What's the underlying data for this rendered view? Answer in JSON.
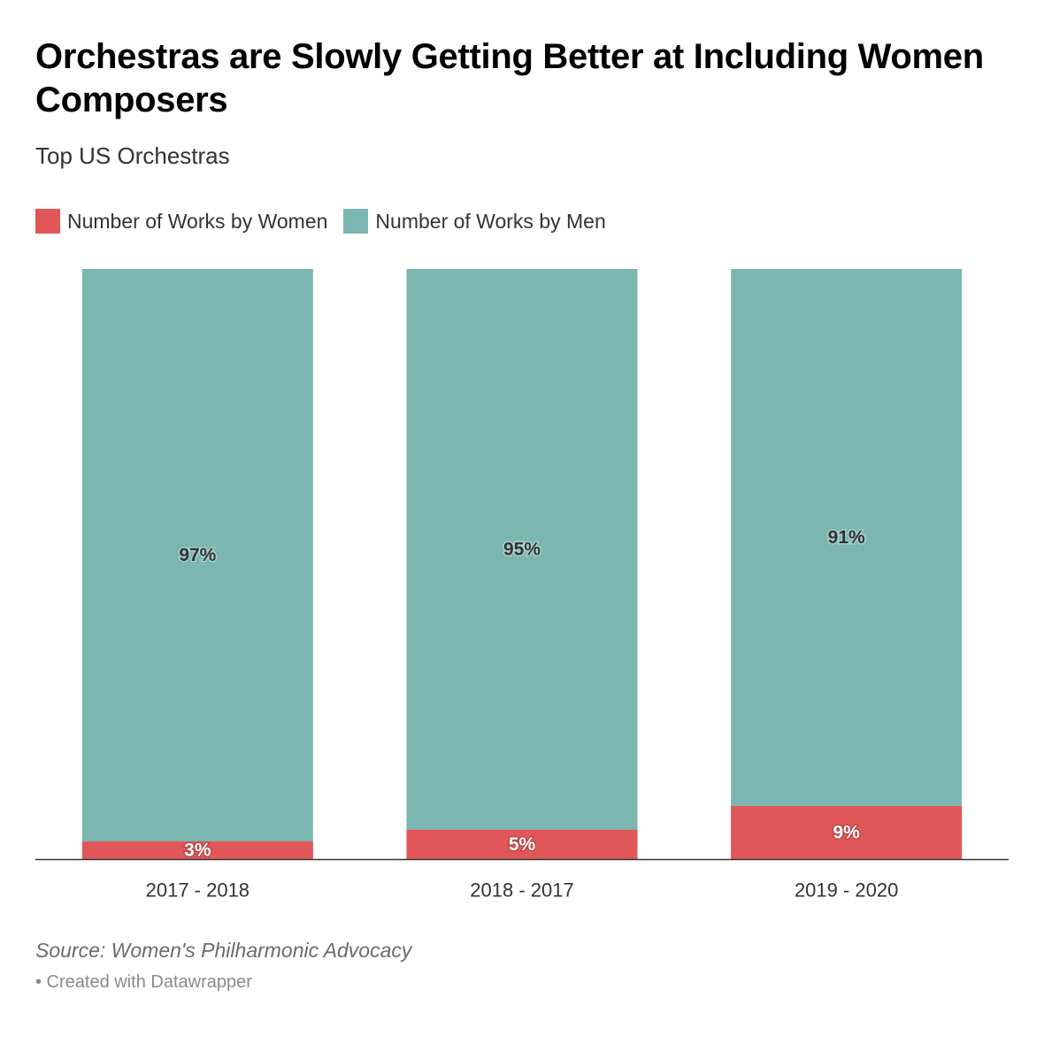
{
  "chart_data": {
    "type": "bar",
    "stacked": true,
    "title": "Orchestras are Slowly Getting Better at Including Women Composers",
    "subtitle": "Top US Orchestras",
    "categories": [
      "2017 - 2018",
      "2018 - 2017",
      "2019 - 2020"
    ],
    "series": [
      {
        "name": "Number of Works by Women",
        "values": [
          3,
          5,
          9
        ],
        "labels": [
          "3%",
          "5%",
          "9%"
        ],
        "color": "#e15759"
      },
      {
        "name": "Number of Works by Men",
        "values": [
          97,
          95,
          91
        ],
        "labels": [
          "97%",
          "95%",
          "91%"
        ],
        "color": "#7bb6b1"
      }
    ],
    "ylim": [
      0,
      100
    ],
    "grid": false,
    "legend_position": "top-left",
    "source": "Source: Women's Philharmonic Advocacy",
    "credit": "• Created with Datawrapper"
  }
}
